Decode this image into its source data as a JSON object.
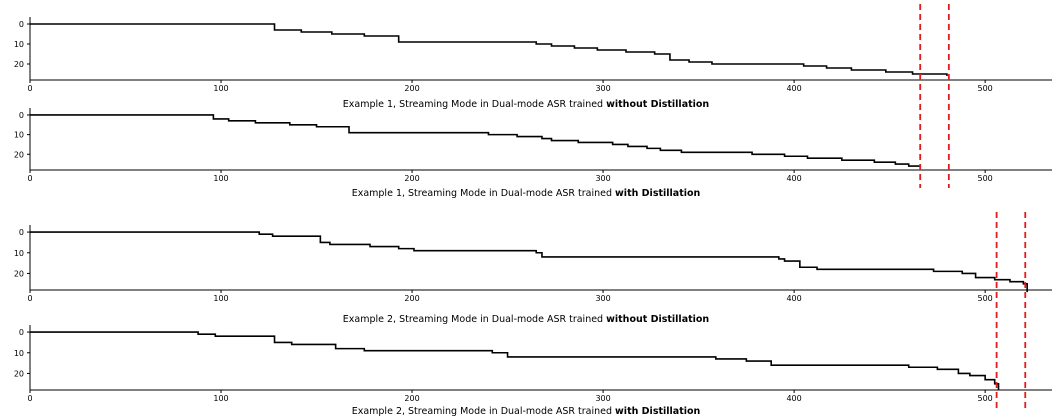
{
  "chart_data": [
    {
      "type": "line",
      "caption": {
        "prefix": "Example 1, Streaming Mode in Dual-mode ASR trained ",
        "bold": "without Distillation"
      },
      "x_ticks": [
        0,
        100,
        200,
        300,
        400,
        500
      ],
      "y_ticks": [
        0,
        10,
        20
      ],
      "xlim": [
        0,
        535
      ],
      "ylim": [
        28,
        -1
      ],
      "steps": [
        [
          0,
          0
        ],
        [
          128,
          3
        ],
        [
          142,
          4
        ],
        [
          158,
          5
        ],
        [
          175,
          6
        ],
        [
          193,
          9
        ],
        [
          248,
          9
        ],
        [
          265,
          10
        ],
        [
          273,
          11
        ],
        [
          285,
          12
        ],
        [
          297,
          13
        ],
        [
          312,
          14
        ],
        [
          327,
          15
        ],
        [
          335,
          18
        ],
        [
          345,
          19
        ],
        [
          357,
          20
        ],
        [
          405,
          21
        ],
        [
          417,
          22
        ],
        [
          430,
          23
        ],
        [
          448,
          24
        ],
        [
          462,
          25
        ],
        [
          470,
          25
        ],
        [
          480,
          26
        ]
      ],
      "x_end": 480,
      "ref_lines": [
        466,
        481
      ]
    },
    {
      "type": "line",
      "caption": {
        "prefix": "Example 1, Streaming Mode in Dual-mode ASR trained ",
        "bold": "with Distillation"
      },
      "x_ticks": [
        0,
        100,
        200,
        300,
        400,
        500
      ],
      "y_ticks": [
        0,
        10,
        20
      ],
      "xlim": [
        0,
        535
      ],
      "ylim": [
        28,
        -1
      ],
      "steps": [
        [
          0,
          0
        ],
        [
          96,
          2
        ],
        [
          104,
          3
        ],
        [
          118,
          4
        ],
        [
          136,
          5
        ],
        [
          150,
          6
        ],
        [
          167,
          9
        ],
        [
          228,
          9
        ],
        [
          240,
          10
        ],
        [
          255,
          11
        ],
        [
          268,
          12
        ],
        [
          273,
          13
        ],
        [
          287,
          14
        ],
        [
          305,
          15
        ],
        [
          313,
          16
        ],
        [
          323,
          17
        ],
        [
          330,
          18
        ],
        [
          341,
          19
        ],
        [
          378,
          20
        ],
        [
          395,
          21
        ],
        [
          407,
          22
        ],
        [
          425,
          23
        ],
        [
          442,
          24
        ],
        [
          453,
          25
        ],
        [
          460,
          26
        ]
      ],
      "x_end": 466,
      "ref_lines": [
        466,
        481
      ]
    },
    {
      "type": "line",
      "caption": {
        "prefix": "Example 2, Streaming Mode in Dual-mode ASR trained ",
        "bold": "without Distillation"
      },
      "x_ticks": [
        0,
        100,
        200,
        300,
        400,
        500
      ],
      "y_ticks": [
        0,
        10,
        20
      ],
      "xlim": [
        0,
        535
      ],
      "ylim": [
        28,
        -1
      ],
      "steps": [
        [
          0,
          0
        ],
        [
          120,
          1
        ],
        [
          127,
          2
        ],
        [
          152,
          5
        ],
        [
          157,
          6
        ],
        [
          178,
          7
        ],
        [
          193,
          8
        ],
        [
          201,
          9
        ],
        [
          265,
          10
        ],
        [
          268,
          12
        ],
        [
          392,
          13
        ],
        [
          395,
          14
        ],
        [
          403,
          17
        ],
        [
          412,
          18
        ],
        [
          473,
          19
        ],
        [
          488,
          20
        ],
        [
          495,
          22
        ],
        [
          505,
          23
        ],
        [
          513,
          24
        ],
        [
          520,
          25
        ],
        [
          522,
          29
        ]
      ],
      "x_end": 522,
      "ref_lines": [
        506,
        521
      ]
    },
    {
      "type": "line",
      "caption": {
        "prefix": "Example 2, Streaming Mode in Dual-mode ASR trained ",
        "bold": "with Distillation"
      },
      "x_ticks": [
        0,
        100,
        200,
        300,
        400,
        500
      ],
      "y_ticks": [
        0,
        10,
        20
      ],
      "xlim": [
        0,
        535
      ],
      "ylim": [
        28,
        -1
      ],
      "steps": [
        [
          0,
          0
        ],
        [
          88,
          1
        ],
        [
          97,
          2
        ],
        [
          128,
          5
        ],
        [
          137,
          6
        ],
        [
          160,
          8
        ],
        [
          175,
          9
        ],
        [
          242,
          10
        ],
        [
          250,
          12
        ],
        [
          359,
          13
        ],
        [
          375,
          14
        ],
        [
          388,
          16
        ],
        [
          460,
          17
        ],
        [
          475,
          18
        ],
        [
          486,
          20
        ],
        [
          492,
          21
        ],
        [
          500,
          23
        ],
        [
          505,
          25
        ],
        [
          507,
          28
        ]
      ],
      "x_end": 507,
      "ref_lines": [
        506,
        521
      ]
    }
  ]
}
